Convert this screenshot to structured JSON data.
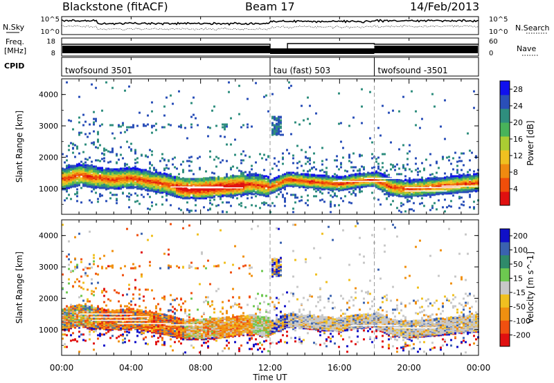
{
  "header": {
    "station": "Blackstone (fitACF)",
    "beam": "Beam 17",
    "date": "14/Feb/2013"
  },
  "left_labels": {
    "nsky": "N.Sky",
    "freq_line1": "Freq.",
    "freq_line2": "[MHz]",
    "cpid": "CPID"
  },
  "right_labels": {
    "nsearch": "N.Search",
    "nave": "Nave"
  },
  "noise_panel": {
    "left_ticks": [
      "10^5",
      "10^0"
    ],
    "right_ticks": [
      "10^5",
      "10^0"
    ]
  },
  "freq_panel": {
    "left_ticks": [
      "18",
      "8"
    ],
    "right_ticks": [
      "60",
      "0"
    ]
  },
  "cpid_segments": [
    {
      "label": "twofsound 3501",
      "start_hour": 0
    },
    {
      "label": "tau (fast) 503",
      "start_hour": 12
    },
    {
      "label": "twofsound -3501",
      "start_hour": 18
    }
  ],
  "chart_data": [
    {
      "type": "heatmap",
      "title": "Power",
      "ylabel": "Slant Range [km]",
      "xlabel": "Time UT",
      "xlim": [
        0,
        24
      ],
      "ylim": [
        180,
        4500
      ],
      "y_ticks": [
        1000,
        2000,
        3000,
        4000
      ],
      "x_tick_labels": [
        "00:00",
        "04:00",
        "08:00",
        "12:00",
        "16:00",
        "20:00",
        "00:00"
      ],
      "colorbar": {
        "label": "Power [dB]",
        "ticks": [
          "4",
          "8",
          "12",
          "16",
          "20",
          "24",
          "28"
        ],
        "range": [
          0,
          30
        ],
        "colors": [
          "#1010ee",
          "#2a4fb8",
          "#2f8e7e",
          "#48b35a",
          "#aacc33",
          "#f0c020",
          "#f08a10",
          "#f04e0a",
          "#e01010"
        ]
      },
      "echo_band_center_km": [
        [
          0,
          1300
        ],
        [
          1,
          1450
        ],
        [
          2,
          1350
        ],
        [
          3,
          1300
        ],
        [
          4,
          1350
        ],
        [
          5,
          1250
        ],
        [
          6,
          1150
        ],
        [
          7,
          1000
        ],
        [
          8,
          1000
        ],
        [
          9,
          1050
        ],
        [
          10,
          1100
        ],
        [
          11,
          1150
        ],
        [
          12,
          1050
        ],
        [
          13,
          1300
        ],
        [
          14,
          1250
        ],
        [
          15,
          1200
        ],
        [
          16,
          1150
        ],
        [
          17,
          1250
        ],
        [
          18,
          1300
        ],
        [
          19,
          1050
        ],
        [
          20,
          1000
        ],
        [
          21,
          1050
        ],
        [
          22,
          1100
        ],
        [
          23,
          1150
        ],
        [
          24,
          1200
        ]
      ]
    },
    {
      "type": "heatmap",
      "title": "Velocity",
      "ylabel": "Slant Range [km]",
      "xlabel": "Time UT",
      "xlim": [
        0,
        24
      ],
      "ylim": [
        180,
        4500
      ],
      "y_ticks": [
        1000,
        2000,
        3000,
        4000
      ],
      "x_tick_labels": [
        "00:00",
        "04:00",
        "08:00",
        "12:00",
        "16:00",
        "20:00",
        "00:00"
      ],
      "colorbar": {
        "label": "Velocity [m s^-1]",
        "ticks": [
          "200",
          "100",
          "50",
          "15",
          "-15",
          "-50",
          "-100",
          "-200"
        ],
        "range": [
          -250,
          250
        ],
        "colors": [
          "#1010c8",
          "#3a62b0",
          "#2f8a6a",
          "#6dc850",
          "#c8c8c8",
          "#f0c020",
          "#f09010",
          "#f05010",
          "#e01010"
        ]
      }
    }
  ],
  "axis": {
    "time_label": "Time UT"
  }
}
